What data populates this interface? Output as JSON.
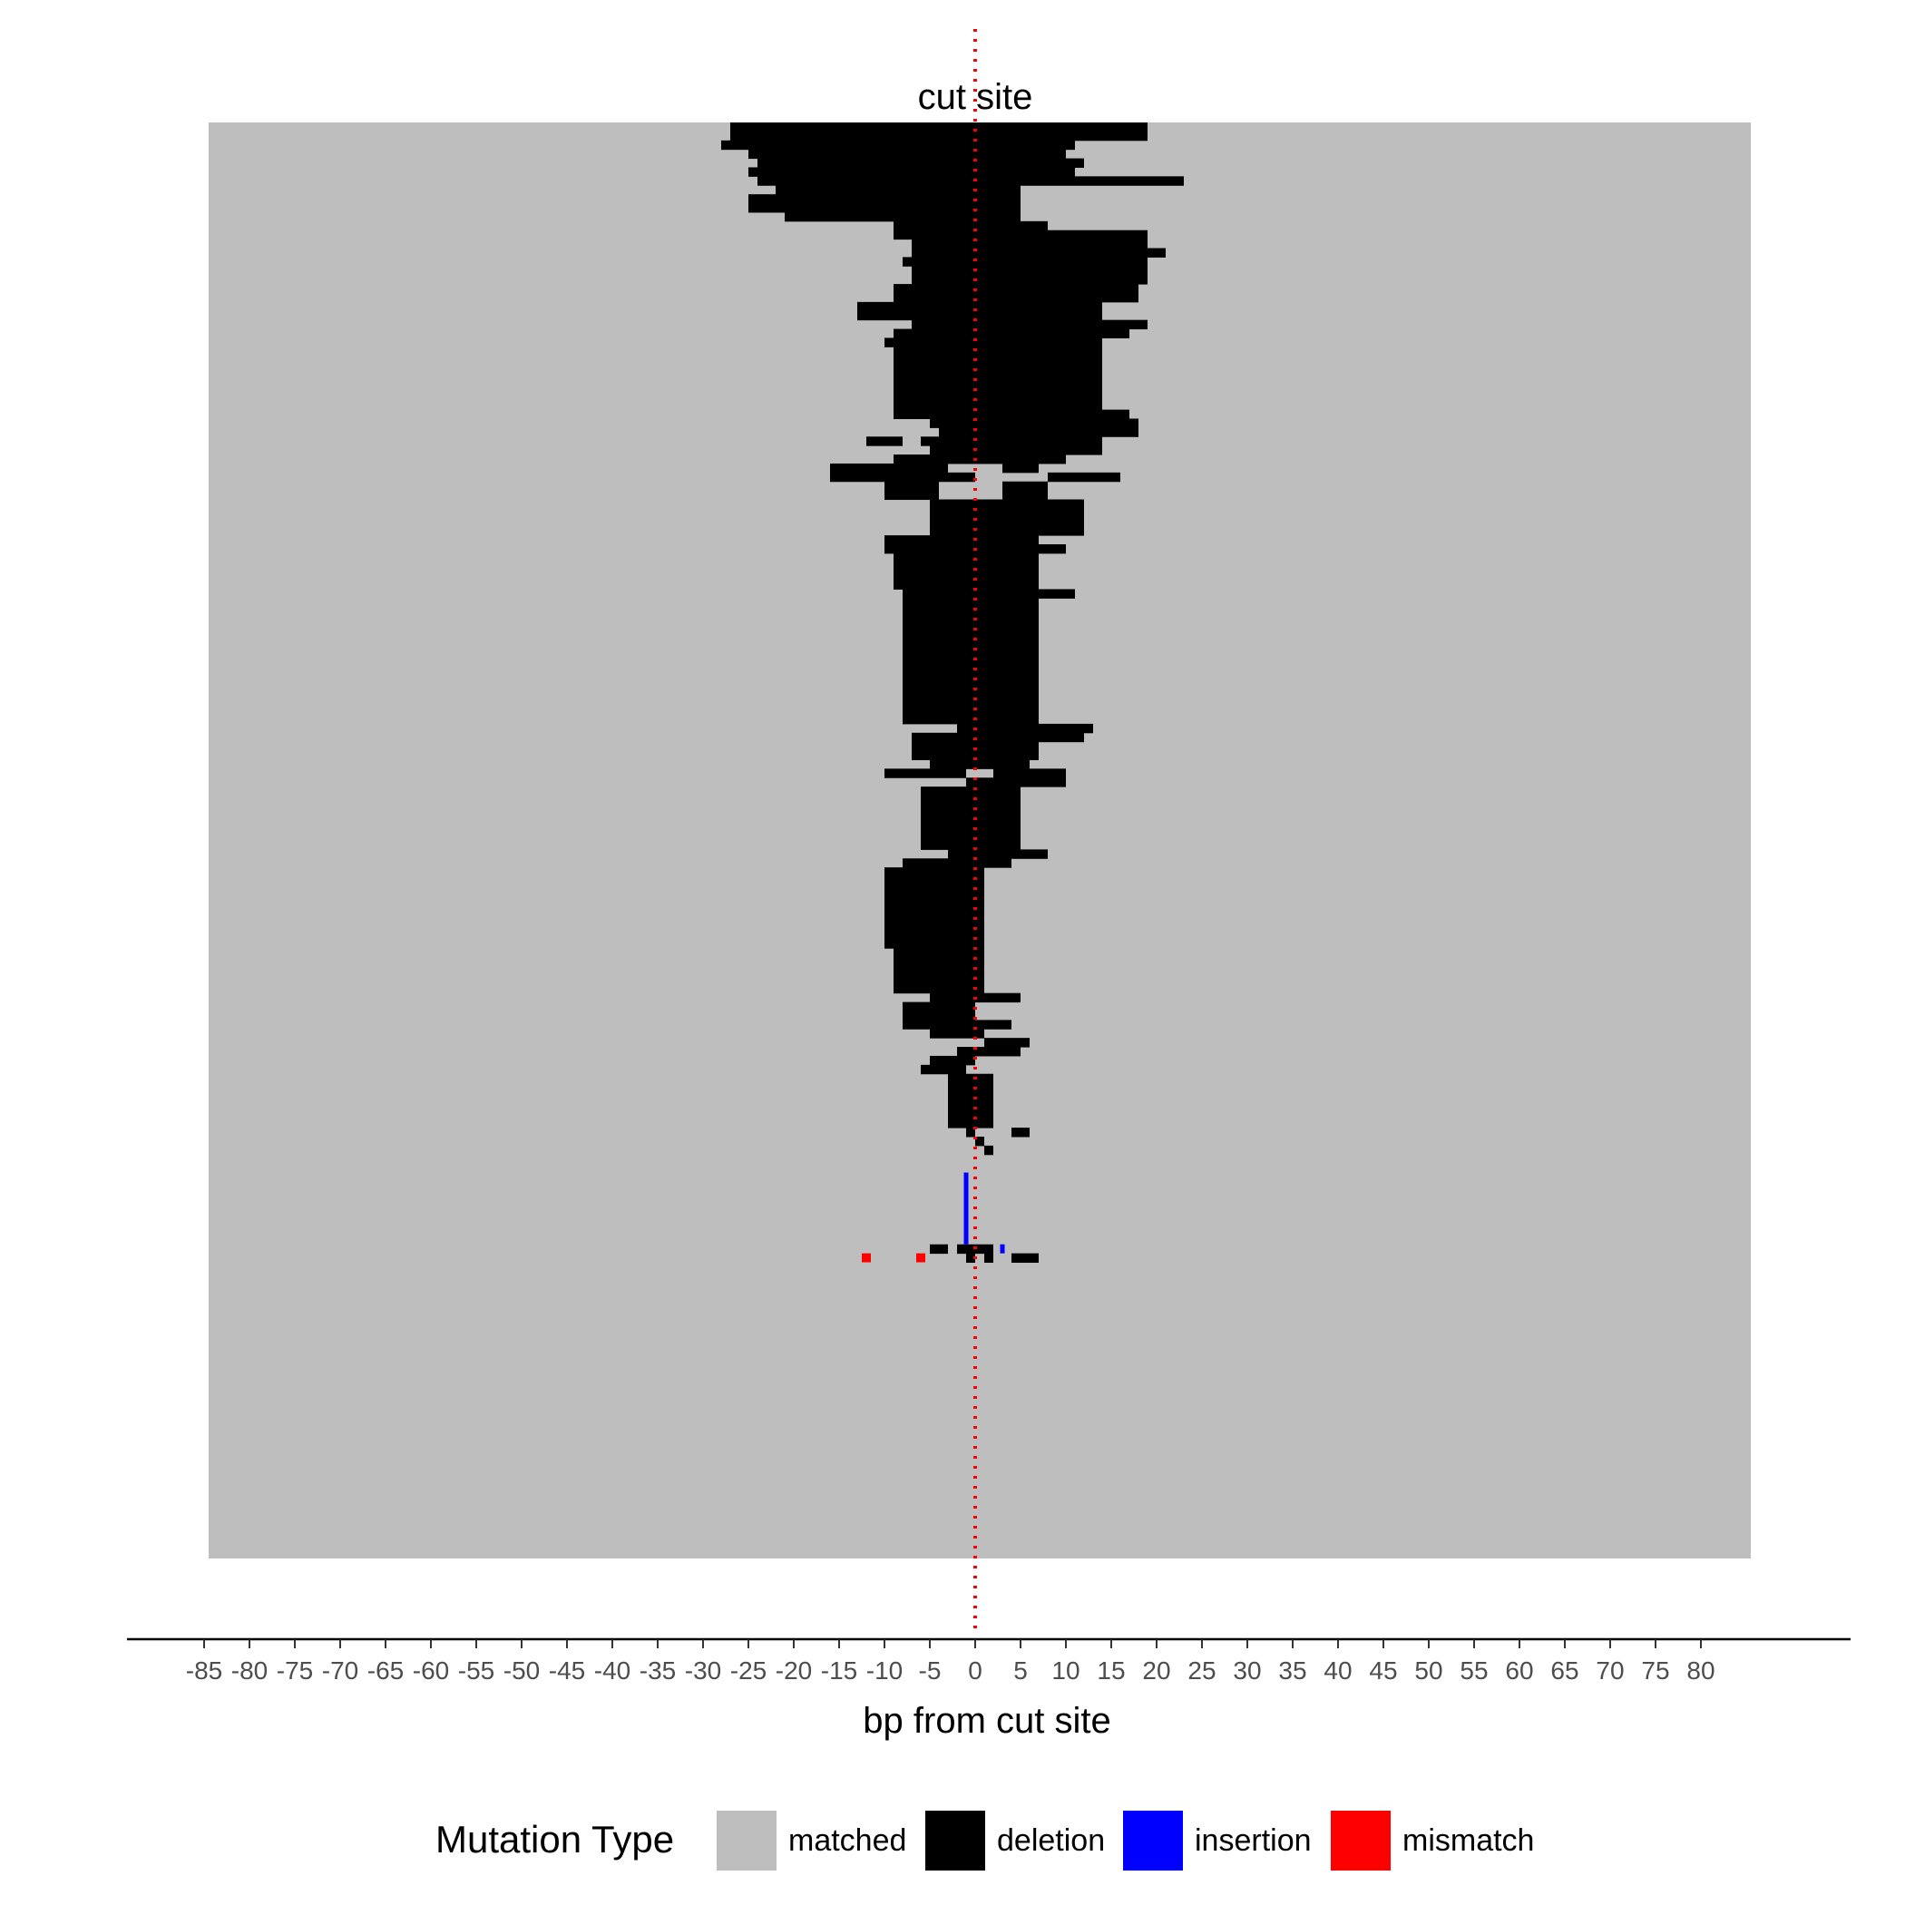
{
  "chart_data": {
    "type": "heatmap",
    "title": "",
    "xlabel": "bp from cut site",
    "ylabel": "",
    "xlim": [
      -85,
      85
    ],
    "x_ticks": [
      -85,
      -80,
      -75,
      -70,
      -65,
      -60,
      -55,
      -50,
      -45,
      -40,
      -35,
      -30,
      -25,
      -20,
      -15,
      -10,
      -5,
      0,
      5,
      10,
      15,
      20,
      25,
      30,
      35,
      40,
      45,
      50,
      55,
      60,
      65,
      70,
      75,
      80
    ],
    "x_tick_labels": [
      "-85",
      "-80",
      "-75",
      "-70",
      "-65",
      "-60",
      "-55",
      "-50",
      "-45",
      "-40",
      "-35",
      "-30",
      "-25",
      "-20",
      "-15",
      "-10",
      "-5",
      "0",
      "5",
      "10",
      "15",
      "20",
      "25",
      "30",
      "35",
      "40",
      "45",
      "50",
      "55",
      "60",
      "65",
      "70",
      "75",
      "80"
    ],
    "matched_range": [
      -84.5,
      85.5
    ],
    "n_rows": 160,
    "cut_site": {
      "x": 0,
      "label": "cut site",
      "color": "#ff0000"
    },
    "legend": {
      "title": "Mutation Type",
      "position": "bottom",
      "items": [
        {
          "label": "matched",
          "color": "#bebebe"
        },
        {
          "label": "deletion",
          "color": "#000000"
        },
        {
          "label": "insertion",
          "color": "#0000ff"
        },
        {
          "label": "mismatch",
          "color": "#ff0000"
        }
      ]
    },
    "deletions": [
      {
        "rows": [
          0,
          0
        ],
        "start": -27,
        "end": 16
      },
      {
        "rows": [
          0,
          0
        ],
        "start": 16,
        "end": 19
      },
      {
        "rows": [
          1,
          1
        ],
        "start": -27,
        "end": 11
      },
      {
        "rows": [
          1,
          1
        ],
        "start": 11,
        "end": 19
      },
      {
        "rows": [
          2,
          2
        ],
        "start": -28,
        "end": 11
      },
      {
        "rows": [
          3,
          3
        ],
        "start": -25,
        "end": 10
      },
      {
        "rows": [
          4,
          4
        ],
        "start": -24,
        "end": 12
      },
      {
        "rows": [
          5,
          5
        ],
        "start": -25,
        "end": 11
      },
      {
        "rows": [
          6,
          6
        ],
        "start": -24,
        "end": 23
      },
      {
        "rows": [
          7,
          7
        ],
        "start": -22,
        "end": 5
      },
      {
        "rows": [
          8,
          9
        ],
        "start": -25,
        "end": 5
      },
      {
        "rows": [
          10,
          10
        ],
        "start": -21,
        "end": 5
      },
      {
        "rows": [
          11,
          11
        ],
        "start": -9,
        "end": 8
      },
      {
        "rows": [
          12,
          12
        ],
        "start": -9,
        "end": 19
      },
      {
        "rows": [
          13,
          13
        ],
        "start": -7,
        "end": 19
      },
      {
        "rows": [
          14,
          14
        ],
        "start": -7,
        "end": 21
      },
      {
        "rows": [
          15,
          15
        ],
        "start": -8,
        "end": 19
      },
      {
        "rows": [
          16,
          17
        ],
        "start": -7,
        "end": 19
      },
      {
        "rows": [
          18,
          19
        ],
        "start": -9,
        "end": 18
      },
      {
        "rows": [
          20,
          20
        ],
        "start": -13,
        "end": 14
      },
      {
        "rows": [
          21,
          21
        ],
        "start": -13,
        "end": 14
      },
      {
        "rows": [
          22,
          22
        ],
        "start": -7,
        "end": 19
      },
      {
        "rows": [
          23,
          23
        ],
        "start": -9,
        "end": 17
      },
      {
        "rows": [
          24,
          24
        ],
        "start": -10,
        "end": 14
      },
      {
        "rows": [
          25,
          25
        ],
        "start": -9,
        "end": 14
      },
      {
        "rows": [
          26,
          31
        ],
        "start": -9,
        "end": 14
      },
      {
        "rows": [
          32,
          32
        ],
        "start": -9,
        "end": 17
      },
      {
        "rows": [
          33,
          33
        ],
        "start": -5,
        "end": 18
      },
      {
        "rows": [
          34,
          34
        ],
        "start": -4,
        "end": 18
      },
      {
        "rows": [
          35,
          35
        ],
        "start": -12,
        "end": -8
      },
      {
        "rows": [
          35,
          35
        ],
        "start": -6,
        "end": 14
      },
      {
        "rows": [
          36,
          36
        ],
        "start": -5,
        "end": 10
      },
      {
        "rows": [
          36,
          36
        ],
        "start": 10,
        "end": 14
      },
      {
        "rows": [
          37,
          37
        ],
        "start": -9,
        "end": 10
      },
      {
        "rows": [
          38,
          38
        ],
        "start": -16,
        "end": -12
      },
      {
        "rows": [
          38,
          38
        ],
        "start": -12,
        "end": -3
      },
      {
        "rows": [
          38,
          38
        ],
        "start": 3,
        "end": 7
      },
      {
        "rows": [
          39,
          39
        ],
        "start": -16,
        "end": -5
      },
      {
        "rows": [
          39,
          39
        ],
        "start": -5,
        "end": 0
      },
      {
        "rows": [
          39,
          39
        ],
        "start": 8,
        "end": 16
      },
      {
        "rows": [
          40,
          41
        ],
        "start": -10,
        "end": -4
      },
      {
        "rows": [
          40,
          41
        ],
        "start": 3,
        "end": 8
      },
      {
        "rows": [
          42,
          42
        ],
        "start": -5,
        "end": 12
      },
      {
        "rows": [
          43,
          45
        ],
        "start": -5,
        "end": 12
      },
      {
        "rows": [
          46,
          46
        ],
        "start": -10,
        "end": 7
      },
      {
        "rows": [
          47,
          47
        ],
        "start": -10,
        "end": 7
      },
      {
        "rows": [
          47,
          47
        ],
        "start": 7,
        "end": 10
      },
      {
        "rows": [
          48,
          48
        ],
        "start": -9,
        "end": 7
      },
      {
        "rows": [
          49,
          51
        ],
        "start": -9,
        "end": 7
      },
      {
        "rows": [
          52,
          52
        ],
        "start": -8,
        "end": 11
      },
      {
        "rows": [
          53,
          53
        ],
        "start": -8,
        "end": -4
      },
      {
        "rows": [
          53,
          53
        ],
        "start": -4,
        "end": 7
      },
      {
        "rows": [
          54,
          66
        ],
        "start": -8,
        "end": 7
      },
      {
        "rows": [
          67,
          67
        ],
        "start": -2,
        "end": 13
      },
      {
        "rows": [
          68,
          68
        ],
        "start": -7,
        "end": 12
      },
      {
        "rows": [
          69,
          70
        ],
        "start": -7,
        "end": 7
      },
      {
        "rows": [
          71,
          71
        ],
        "start": -5,
        "end": 6
      },
      {
        "rows": [
          72,
          72
        ],
        "start": -10,
        "end": -1
      },
      {
        "rows": [
          72,
          72
        ],
        "start": 2,
        "end": 10
      },
      {
        "rows": [
          73,
          73
        ],
        "start": -1,
        "end": 10
      },
      {
        "rows": [
          74,
          74
        ],
        "start": -6,
        "end": 5
      },
      {
        "rows": [
          75,
          80
        ],
        "start": -6,
        "end": 5
      },
      {
        "rows": [
          81,
          81
        ],
        "start": -3,
        "end": 8
      },
      {
        "rows": [
          82,
          82
        ],
        "start": -8,
        "end": 4
      },
      {
        "rows": [
          83,
          91
        ],
        "start": -10,
        "end": 1
      },
      {
        "rows": [
          92,
          96
        ],
        "start": -9,
        "end": 1
      },
      {
        "rows": [
          97,
          97
        ],
        "start": -5,
        "end": 5
      },
      {
        "rows": [
          98,
          98
        ],
        "start": -8,
        "end": 0
      },
      {
        "rows": [
          99,
          99
        ],
        "start": -8,
        "end": 0
      },
      {
        "rows": [
          100,
          100
        ],
        "start": -8,
        "end": 4
      },
      {
        "rows": [
          101,
          101
        ],
        "start": -5,
        "end": 1
      },
      {
        "rows": [
          102,
          102
        ],
        "start": 1,
        "end": 6
      },
      {
        "rows": [
          103,
          103
        ],
        "start": -2,
        "end": 5
      },
      {
        "rows": [
          104,
          104
        ],
        "start": -5,
        "end": 0
      },
      {
        "rows": [
          105,
          105
        ],
        "start": -6,
        "end": -1
      },
      {
        "rows": [
          106,
          111
        ],
        "start": -3,
        "end": 2
      },
      {
        "rows": [
          112,
          112
        ],
        "start": 4,
        "end": 6
      },
      {
        "rows": [
          112,
          112
        ],
        "start": -1,
        "end": 0
      },
      {
        "rows": [
          113,
          113
        ],
        "start": 0,
        "end": 1
      },
      {
        "rows": [
          114,
          114
        ],
        "start": 1,
        "end": 2
      }
    ],
    "insertions": [
      {
        "rows": [
          117,
          124
        ],
        "x": -1
      },
      {
        "rows": [
          125,
          125
        ],
        "x": 3
      }
    ],
    "mismatches": [
      {
        "rows": [
          126,
          126
        ],
        "x": -12
      },
      {
        "rows": [
          126,
          126
        ],
        "x": -6
      }
    ],
    "bottom_deletions": [
      {
        "rows": [
          125,
          125
        ],
        "start": -5,
        "end": -3
      },
      {
        "rows": [
          125,
          125
        ],
        "start": -2,
        "end": 0
      },
      {
        "rows": [
          125,
          125
        ],
        "start": 0,
        "end": 2
      },
      {
        "rows": [
          126,
          126
        ],
        "start": -1,
        "end": 0
      },
      {
        "rows": [
          126,
          126
        ],
        "start": 1,
        "end": 2
      },
      {
        "rows": [
          126,
          126
        ],
        "start": 4,
        "end": 7
      }
    ]
  }
}
